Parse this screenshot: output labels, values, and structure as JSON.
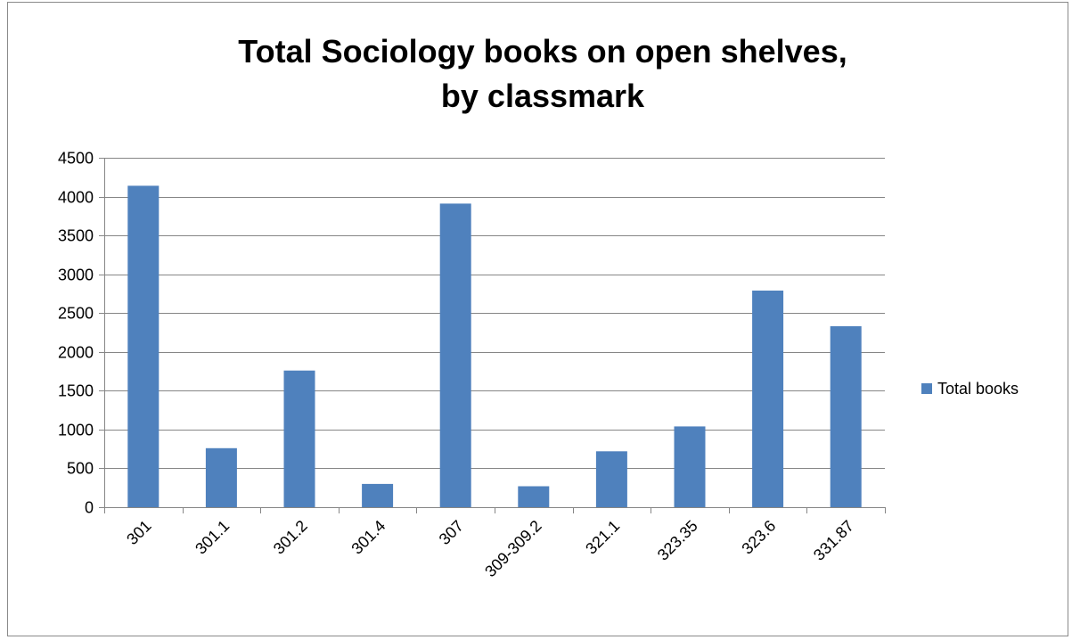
{
  "chart_data": {
    "type": "bar",
    "title_line1": "Total Sociology books on open shelves,",
    "title_line2": "by classmark",
    "categories": [
      "301",
      "301.1",
      "301.2",
      "301.4",
      "307",
      "309-309.2",
      "321.1",
      "323.35",
      "323.6",
      "331.87"
    ],
    "series": [
      {
        "name": "Total books",
        "values": [
          4140,
          760,
          1760,
          300,
          3910,
          270,
          720,
          1040,
          2790,
          2330
        ]
      }
    ],
    "ylim": [
      0,
      4500
    ],
    "yticks": [
      0,
      500,
      1000,
      1500,
      2000,
      2500,
      3000,
      3500,
      4000,
      4500
    ],
    "grid": true,
    "legend_position": "right",
    "colors": {
      "bar": "#4F81BD",
      "grid": "#868686",
      "axis": "#868686"
    }
  }
}
